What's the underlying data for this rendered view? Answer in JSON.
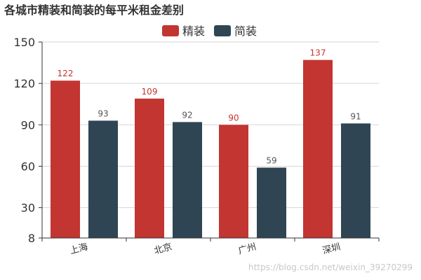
{
  "chart_data": {
    "type": "bar",
    "title": "各城市精装和简装的每平米租金差别",
    "categories": [
      "上海",
      "北京",
      "广州",
      "深圳"
    ],
    "series": [
      {
        "name": "精装",
        "color": "#c23531",
        "values": [
          122,
          109,
          90,
          137
        ]
      },
      {
        "name": "简装",
        "color": "#2f4554",
        "values": [
          93,
          92,
          59,
          91
        ]
      }
    ],
    "yticks": [
      8,
      30,
      60,
      90,
      120,
      150
    ],
    "ylim": [
      8,
      150
    ],
    "grid": true,
    "legend_position": "top-center",
    "xlabel": "",
    "ylabel": ""
  },
  "watermark": "https://blog.csdn.net/weixin_39270299"
}
